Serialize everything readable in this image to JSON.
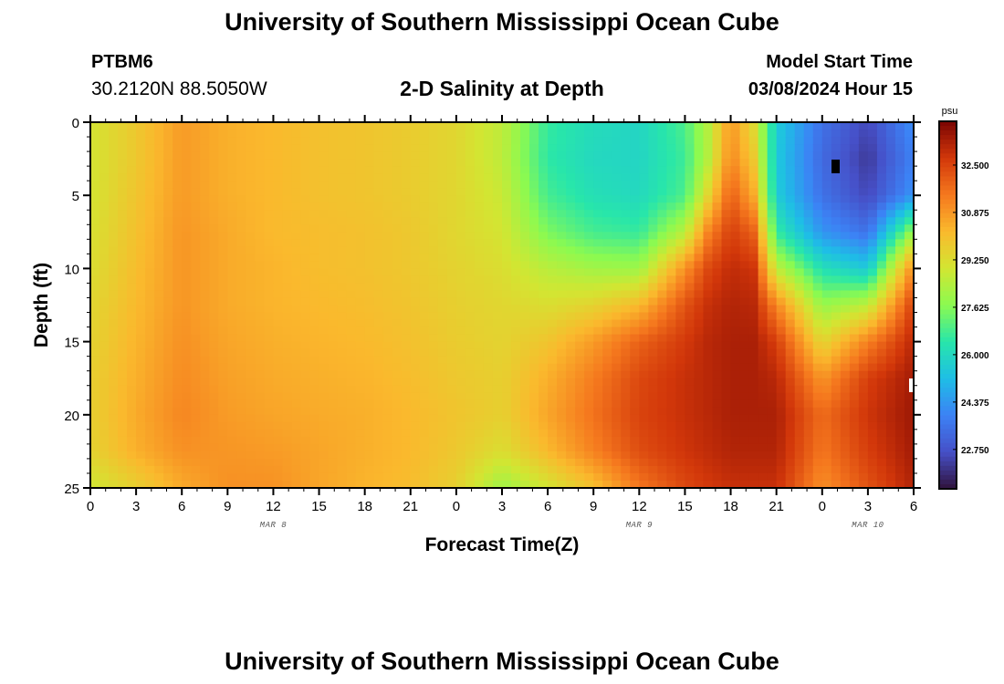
{
  "header": {
    "title": "University of Southern Mississippi Ocean Cube",
    "station_id": "PTBM6",
    "coordinates": "30.2120N  88.5050W",
    "chart_title": "2-D Salinity at Depth",
    "model_start_label": "Model Start Time",
    "model_start_value": "03/08/2024 Hour 15"
  },
  "footer": {
    "title": "University of Southern Mississippi Ocean Cube"
  },
  "chart_data": {
    "type": "heatmap",
    "title": "2-D Salinity at Depth",
    "xlabel": "Forecast Time(Z)",
    "ylabel": "Depth (ft)",
    "x_range_hours": [
      0,
      54
    ],
    "y_range_ft": [
      0,
      25
    ],
    "x_ticks": [
      {
        "hour": 0,
        "label": "0"
      },
      {
        "hour": 3,
        "label": "3"
      },
      {
        "hour": 6,
        "label": "6"
      },
      {
        "hour": 9,
        "label": "9"
      },
      {
        "hour": 12,
        "label": "12"
      },
      {
        "hour": 15,
        "label": "15"
      },
      {
        "hour": 18,
        "label": "18"
      },
      {
        "hour": 21,
        "label": "21"
      },
      {
        "hour": 24,
        "label": "0"
      },
      {
        "hour": 27,
        "label": "3"
      },
      {
        "hour": 30,
        "label": "6"
      },
      {
        "hour": 33,
        "label": "9"
      },
      {
        "hour": 36,
        "label": "12"
      },
      {
        "hour": 39,
        "label": "15"
      },
      {
        "hour": 42,
        "label": "18"
      },
      {
        "hour": 45,
        "label": "21"
      },
      {
        "hour": 48,
        "label": "0"
      },
      {
        "hour": 51,
        "label": "3"
      },
      {
        "hour": 54,
        "label": "6"
      }
    ],
    "date_labels": [
      {
        "hour": 12,
        "label": "MAR 8"
      },
      {
        "hour": 36,
        "label": "MAR 9"
      },
      {
        "hour": 51,
        "label": "MAR 10"
      }
    ],
    "y_ticks": [
      {
        "depth": 0,
        "label": "0"
      },
      {
        "depth": 5,
        "label": "5"
      },
      {
        "depth": 10,
        "label": "10"
      },
      {
        "depth": 15,
        "label": "15"
      },
      {
        "depth": 20,
        "label": "20"
      },
      {
        "depth": 25,
        "label": "25"
      }
    ],
    "colorbar": {
      "unit": "psu",
      "min": 21.4,
      "max": 34.0,
      "ticks": [
        {
          "value": 32.5,
          "label": "32.500"
        },
        {
          "value": 30.875,
          "label": "30.875"
        },
        {
          "value": 29.25,
          "label": "29.250"
        },
        {
          "value": 27.625,
          "label": "27.625"
        },
        {
          "value": 26.0,
          "label": "26.000"
        },
        {
          "value": 24.375,
          "label": "24.375"
        },
        {
          "value": 22.75,
          "label": "22.750"
        }
      ]
    },
    "grid_depths_ft": [
      0,
      2.5,
      5,
      7.5,
      10,
      12.5,
      15,
      17.5,
      20,
      22.5,
      25
    ],
    "columns": [
      {
        "hour": 0,
        "values": [
          29.0,
          29.0,
          29.0,
          29.1,
          29.2,
          29.4,
          29.5,
          29.6,
          29.6,
          29.5,
          28.9
        ]
      },
      {
        "hour": 3,
        "values": [
          29.8,
          29.8,
          29.9,
          30.0,
          30.1,
          30.2,
          30.3,
          30.4,
          30.5,
          30.4,
          29.6
        ]
      },
      {
        "hour": 6,
        "values": [
          30.8,
          30.8,
          30.8,
          30.9,
          30.9,
          30.9,
          31.0,
          31.1,
          31.2,
          31.0,
          30.5
        ]
      },
      {
        "hour": 9,
        "values": [
          30.4,
          30.4,
          30.4,
          30.5,
          30.5,
          30.5,
          30.6,
          30.7,
          30.8,
          30.9,
          31.0
        ]
      },
      {
        "hour": 12,
        "values": [
          30.2,
          30.2,
          30.2,
          30.2,
          30.3,
          30.3,
          30.4,
          30.5,
          30.6,
          30.8,
          31.0
        ]
      },
      {
        "hour": 15,
        "values": [
          30.0,
          30.0,
          30.0,
          30.1,
          30.1,
          30.2,
          30.3,
          30.4,
          30.5,
          30.6,
          30.6
        ]
      },
      {
        "hour": 18,
        "values": [
          29.9,
          29.9,
          29.9,
          30.0,
          30.0,
          30.1,
          30.2,
          30.3,
          30.4,
          30.4,
          30.3
        ]
      },
      {
        "hour": 21,
        "values": [
          29.7,
          29.7,
          29.7,
          29.8,
          29.8,
          29.9,
          30.0,
          30.1,
          30.2,
          30.2,
          30.1
        ]
      },
      {
        "hour": 24,
        "values": [
          29.4,
          29.4,
          29.4,
          29.4,
          29.5,
          29.6,
          29.7,
          29.8,
          29.9,
          29.8,
          29.6
        ]
      },
      {
        "hour": 27,
        "values": [
          28.6,
          28.6,
          28.8,
          29.0,
          29.2,
          29.4,
          29.5,
          29.6,
          29.6,
          29.2,
          28.0
        ]
      },
      {
        "hour": 30,
        "values": [
          26.6,
          26.5,
          26.8,
          27.5,
          28.5,
          29.2,
          29.9,
          30.4,
          30.6,
          30.2,
          29.0
        ]
      },
      {
        "hour": 33,
        "values": [
          26.1,
          26.0,
          26.2,
          26.8,
          28.1,
          29.5,
          30.8,
          31.4,
          31.6,
          31.3,
          30.0
        ]
      },
      {
        "hour": 36,
        "values": [
          25.9,
          25.9,
          26.0,
          26.6,
          28.0,
          30.2,
          31.9,
          32.4,
          32.5,
          32.3,
          31.5
        ]
      },
      {
        "hour": 39,
        "values": [
          26.9,
          26.7,
          26.9,
          28.5,
          31.0,
          32.2,
          32.7,
          32.9,
          32.9,
          32.8,
          32.4
        ]
      },
      {
        "hour": 40.5,
        "values": [
          28.4,
          28.4,
          29.4,
          31.2,
          32.4,
          32.9,
          33.1,
          33.1,
          33.1,
          33.0,
          32.7
        ]
      },
      {
        "hour": 42,
        "values": [
          30.9,
          31.2,
          32.0,
          32.6,
          33.0,
          33.2,
          33.3,
          33.3,
          33.3,
          33.2,
          32.9
        ]
      },
      {
        "hour": 43.5,
        "values": [
          29.3,
          29.8,
          30.5,
          31.9,
          32.8,
          33.1,
          33.3,
          33.3,
          33.3,
          33.2,
          32.9
        ]
      },
      {
        "hour": 45,
        "values": [
          25.6,
          25.5,
          25.6,
          26.6,
          28.6,
          31.2,
          32.6,
          33.1,
          33.3,
          33.2,
          32.9
        ]
      },
      {
        "hour": 48,
        "values": [
          23.5,
          23.3,
          23.5,
          24.3,
          26.2,
          27.9,
          29.4,
          30.9,
          31.7,
          31.5,
          31.0
        ]
      },
      {
        "hour": 51,
        "values": [
          22.5,
          22.2,
          22.5,
          23.5,
          25.5,
          28.6,
          31.3,
          32.6,
          32.8,
          32.6,
          32.2
        ]
      },
      {
        "hour": 54,
        "values": [
          24.2,
          23.9,
          24.3,
          28.0,
          31.2,
          32.6,
          33.1,
          33.4,
          33.5,
          33.4,
          33.2
        ]
      }
    ]
  }
}
